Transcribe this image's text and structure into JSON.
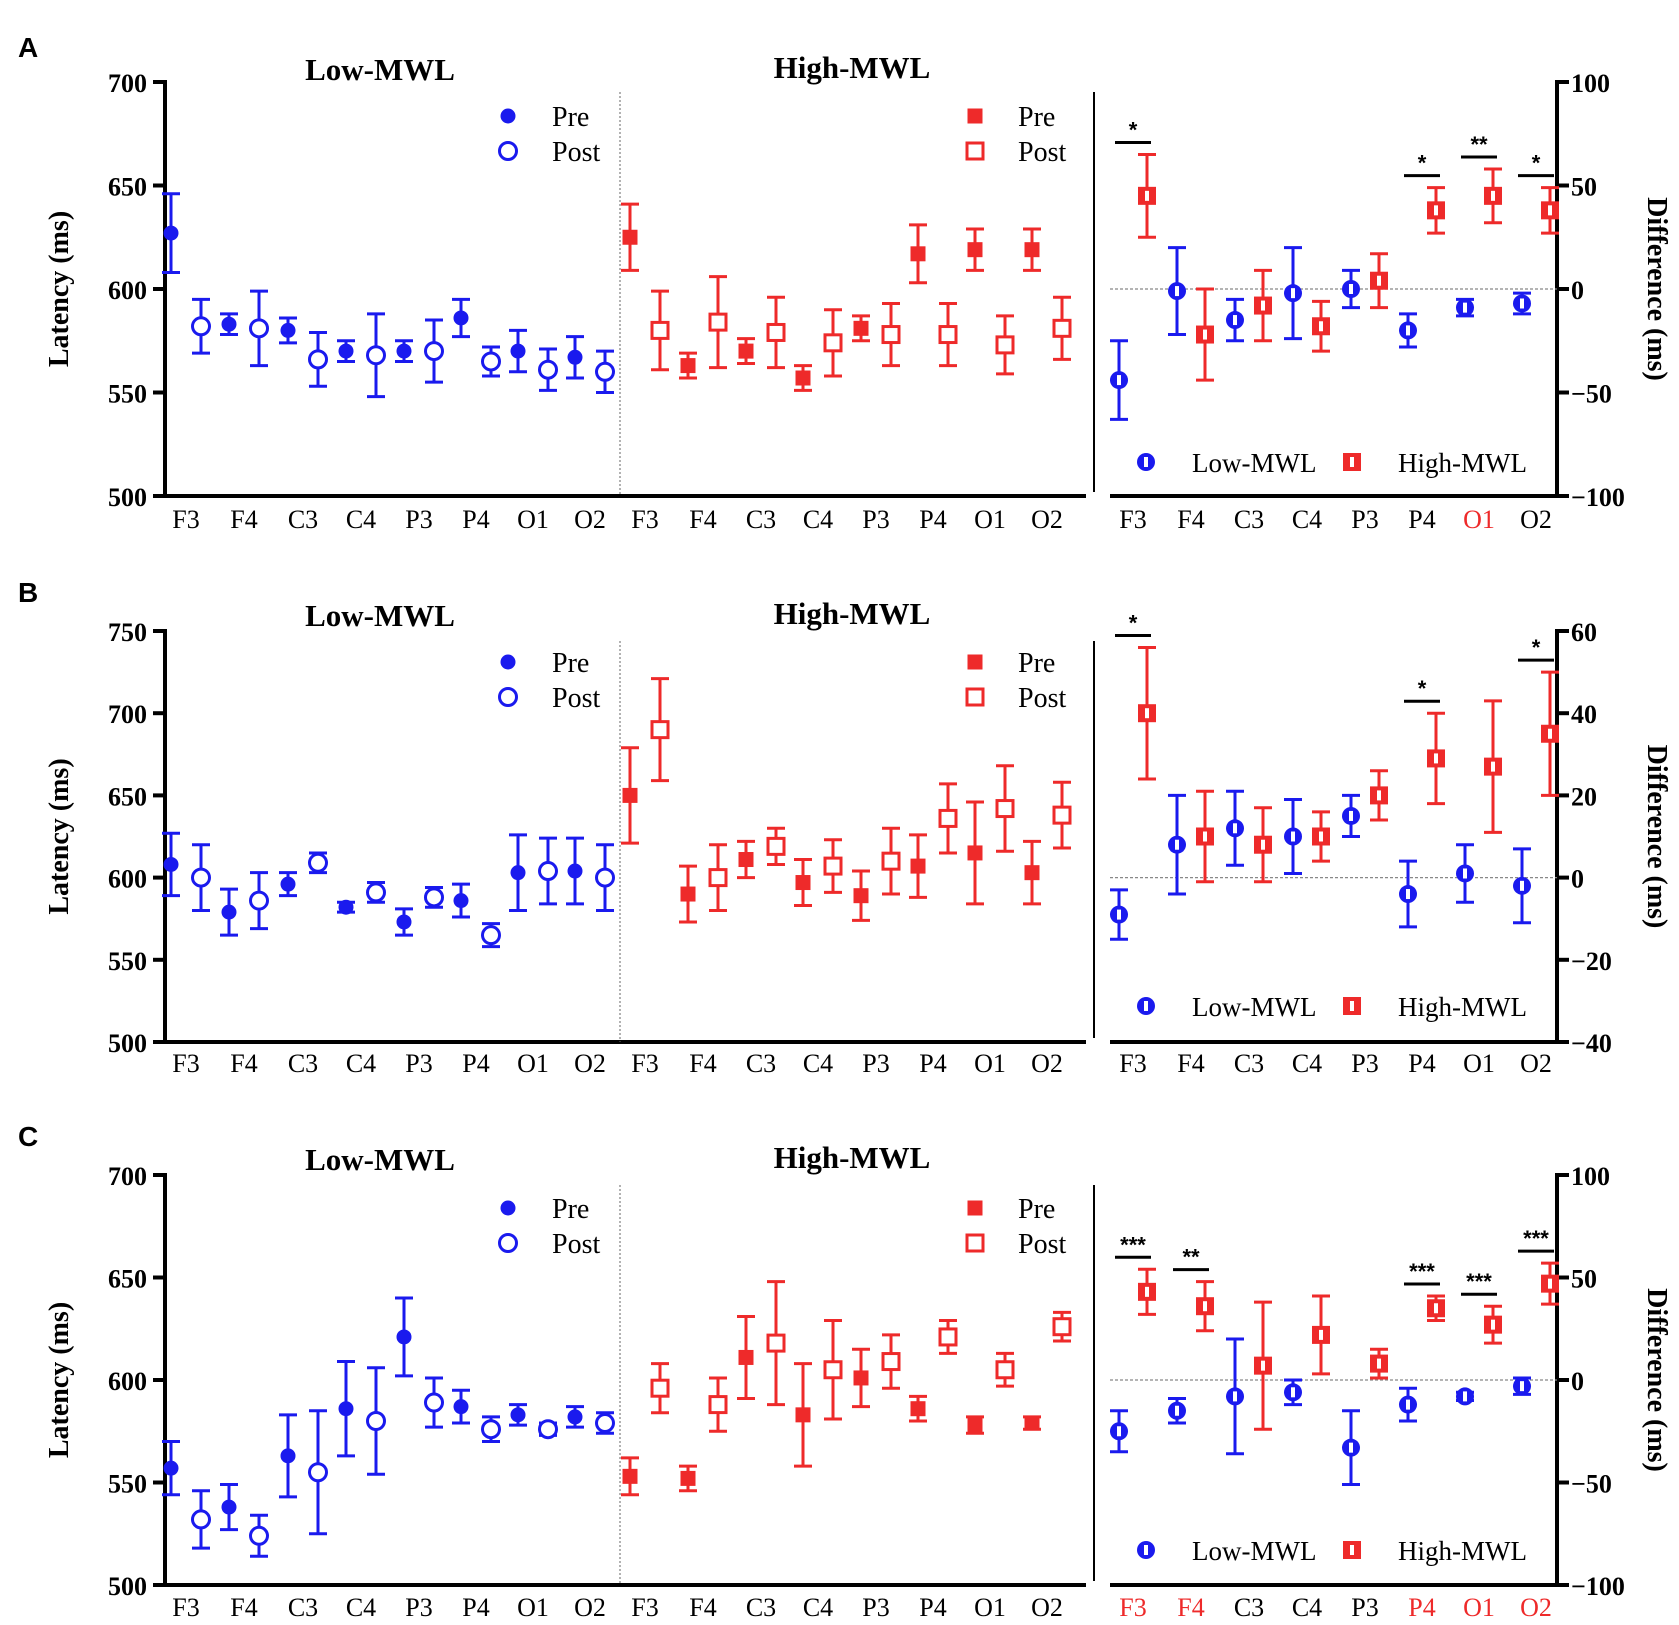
{
  "colors": {
    "low": "#1a1aee",
    "high": "#ee2a2a",
    "axis": "#000000",
    "divider": "#666666",
    "zero": "#888888"
  },
  "shared": {
    "electrodes": [
      "F3",
      "F4",
      "C3",
      "C4",
      "P3",
      "P4",
      "O1",
      "O2"
    ],
    "ylabel": "Latency (ms)",
    "y2label": "Difference (ms)",
    "low_title": "Low-MWL",
    "high_title": "High-MWL",
    "legend_pre": "Pre",
    "legend_post": "Post",
    "legend_low": "Low-MWL",
    "legend_high": "High-MWL"
  },
  "chart_data": [
    {
      "panel": "A",
      "type": "scatter",
      "ylim": [
        500,
        700
      ],
      "yticks": [
        500,
        550,
        600,
        650,
        700
      ],
      "y2lim": [
        -100,
        100
      ],
      "y2ticks": [
        -100,
        -50,
        0,
        50,
        100
      ],
      "series": [
        {
          "name": "Low-MWL Pre",
          "values": [
            627,
            583,
            580,
            570,
            570,
            586,
            570,
            567
          ],
          "err": [
            19,
            5,
            6,
            5,
            5,
            9,
            10,
            10
          ]
        },
        {
          "name": "Low-MWL Post",
          "values": [
            582,
            581,
            566,
            568,
            570,
            565,
            561,
            560
          ],
          "err": [
            13,
            18,
            13,
            20,
            15,
            7,
            10,
            10
          ]
        },
        {
          "name": "High-MWL Pre",
          "values": [
            625,
            563,
            570,
            557,
            581,
            617,
            619,
            619
          ],
          "err": [
            16,
            6,
            6,
            6,
            6,
            14,
            10,
            10
          ]
        },
        {
          "name": "High-MWL Post",
          "values": [
            580,
            584,
            579,
            574,
            578,
            578,
            573,
            581
          ],
          "err": [
            19,
            22,
            17,
            16,
            15,
            15,
            14,
            15
          ]
        },
        {
          "name": "Low-MWL Difference",
          "values": [
            -44,
            -1,
            -15,
            -2,
            0,
            -20,
            -9,
            -7
          ],
          "err": [
            19,
            21,
            10,
            22,
            9,
            8,
            4,
            5
          ]
        },
        {
          "name": "High-MWL Difference",
          "values": [
            45,
            -22,
            -8,
            -18,
            4,
            38,
            45,
            38
          ],
          "err": [
            20,
            22,
            17,
            12,
            13,
            11,
            13,
            11
          ]
        }
      ],
      "significance": [
        {
          "electrode": "F3",
          "label": "*"
        },
        {
          "electrode": "P4",
          "label": "*"
        },
        {
          "electrode": "O1",
          "label": "**"
        },
        {
          "electrode": "O2",
          "label": "*"
        }
      ],
      "highlighted_labels": [
        "O1"
      ]
    },
    {
      "panel": "B",
      "type": "scatter",
      "ylim": [
        500,
        750
      ],
      "yticks": [
        500,
        550,
        600,
        650,
        700,
        750
      ],
      "y2lim": [
        -40,
        60
      ],
      "y2ticks": [
        -40,
        -20,
        0,
        20,
        40,
        60
      ],
      "series": [
        {
          "name": "Low-MWL Pre",
          "values": [
            608,
            579,
            596,
            582,
            573,
            586,
            603,
            604
          ],
          "err": [
            19,
            14,
            7,
            3,
            8,
            10,
            23,
            20
          ]
        },
        {
          "name": "Low-MWL Post",
          "values": [
            600,
            586,
            609,
            591,
            588,
            565,
            604,
            600
          ],
          "err": [
            20,
            17,
            6,
            6,
            6,
            7,
            20,
            20
          ]
        },
        {
          "name": "High-MWL Pre",
          "values": [
            650,
            590,
            611,
            597,
            589,
            607,
            615,
            603
          ],
          "err": [
            29,
            17,
            11,
            14,
            15,
            19,
            31,
            19
          ]
        },
        {
          "name": "High-MWL Post",
          "values": [
            690,
            600,
            619,
            607,
            610,
            636,
            642,
            638
          ],
          "err": [
            31,
            20,
            11,
            16,
            20,
            21,
            26,
            20
          ]
        },
        {
          "name": "Low-MWL Difference",
          "values": [
            -9,
            8,
            12,
            10,
            15,
            -4,
            1,
            -2
          ],
          "err": [
            6,
            12,
            9,
            9,
            5,
            8,
            7,
            9
          ]
        },
        {
          "name": "High-MWL Difference",
          "values": [
            40,
            10,
            8,
            10,
            20,
            29,
            27,
            35
          ],
          "err": [
            16,
            11,
            9,
            6,
            6,
            11,
            16,
            15
          ]
        }
      ],
      "significance": [
        {
          "electrode": "F3",
          "label": "*"
        },
        {
          "electrode": "P4",
          "label": "*"
        },
        {
          "electrode": "O2",
          "label": "*"
        }
      ],
      "highlighted_labels": []
    },
    {
      "panel": "C",
      "type": "scatter",
      "ylim": [
        500,
        700
      ],
      "yticks": [
        500,
        550,
        600,
        650,
        700
      ],
      "y2lim": [
        -100,
        100
      ],
      "y2ticks": [
        -100,
        -50,
        0,
        50,
        100
      ],
      "series": [
        {
          "name": "Low-MWL Pre",
          "values": [
            557,
            538,
            563,
            586,
            621,
            587,
            583,
            582
          ],
          "err": [
            13,
            11,
            20,
            23,
            19,
            8,
            5,
            5
          ]
        },
        {
          "name": "Low-MWL Post",
          "values": [
            532,
            524,
            555,
            580,
            589,
            576,
            576,
            579
          ],
          "err": [
            14,
            10,
            30,
            26,
            12,
            6,
            3,
            5
          ]
        },
        {
          "name": "High-MWL Pre",
          "values": [
            553,
            552,
            611,
            583,
            601,
            586,
            578,
            579
          ],
          "err": [
            9,
            6,
            20,
            25,
            14,
            6,
            4,
            3
          ]
        },
        {
          "name": "High-MWL Post",
          "values": [
            596,
            588,
            618,
            605,
            609,
            621,
            605,
            626
          ],
          "err": [
            12,
            13,
            30,
            24,
            13,
            8,
            8,
            7
          ]
        },
        {
          "name": "Low-MWL Difference",
          "values": [
            -25,
            -15,
            -8,
            -6,
            -33,
            -12,
            -8,
            -3
          ],
          "err": [
            10,
            6,
            28,
            6,
            18,
            8,
            2,
            4
          ]
        },
        {
          "name": "High-MWL Difference",
          "values": [
            43,
            36,
            7,
            22,
            8,
            35,
            27,
            47
          ],
          "err": [
            11,
            12,
            31,
            19,
            7,
            6,
            9,
            10
          ]
        }
      ],
      "significance": [
        {
          "electrode": "F3",
          "label": "***"
        },
        {
          "electrode": "F4",
          "label": "**"
        },
        {
          "electrode": "P4",
          "label": "***"
        },
        {
          "electrode": "O1",
          "label": "***"
        },
        {
          "electrode": "O2",
          "label": "***"
        }
      ],
      "highlighted_labels": [
        "F3",
        "F4",
        "P4",
        "O1",
        "O2"
      ]
    }
  ]
}
